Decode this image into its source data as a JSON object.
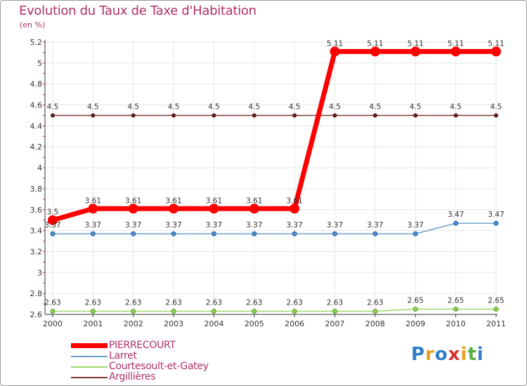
{
  "chart_data": {
    "type": "line",
    "title": "Evolution du Taux de Taxe d'Habitation",
    "subtitle": "(en %)",
    "xlabel": "",
    "ylabel": "",
    "x": [
      "2000",
      "2001",
      "2002",
      "2003",
      "2004",
      "2005",
      "2006",
      "2007",
      "2008",
      "2009",
      "2010",
      "2011"
    ],
    "ylim": [
      2.6,
      5.2
    ],
    "yticks": [
      "5.2",
      "5",
      "4.8",
      "4.6",
      "4.4",
      "4.2",
      "4",
      "3.8",
      "3.6",
      "3.4",
      "3.2",
      "3",
      "2.8",
      "2.6"
    ],
    "grid": true,
    "legend_position": "bottom-left",
    "series": [
      {
        "name": "PIERRECOURT",
        "color": "#ff0000",
        "values": [
          3.5,
          3.61,
          3.61,
          3.61,
          3.61,
          3.61,
          3.61,
          5.11,
          5.11,
          5.11,
          5.11,
          5.11
        ],
        "labels": [
          "3.5",
          "3.61",
          "3.61",
          "3.61",
          "3.61",
          "3.61",
          "3.61",
          "5.11",
          "5.11",
          "5.11",
          "5.11",
          "5.11"
        ]
      },
      {
        "name": "Larret",
        "color": "#6d9fce",
        "values": [
          3.37,
          3.37,
          3.37,
          3.37,
          3.37,
          3.37,
          3.37,
          3.37,
          3.37,
          3.37,
          3.47,
          3.47
        ],
        "labels": [
          "3.37",
          "3.37",
          "3.37",
          "3.37",
          "3.37",
          "3.37",
          "3.37",
          "3.37",
          "3.37",
          "3.37",
          "3.47",
          "3.47"
        ]
      },
      {
        "name": "Courtesoult-et-Gatey",
        "color": "#9ada6a",
        "values": [
          2.63,
          2.63,
          2.63,
          2.63,
          2.63,
          2.63,
          2.63,
          2.63,
          2.63,
          2.65,
          2.65,
          2.65
        ],
        "labels": [
          "2.63",
          "2.63",
          "2.63",
          "2.63",
          "2.63",
          "2.63",
          "2.63",
          "2.63",
          "2.63",
          "2.65",
          "2.65",
          "2.65"
        ]
      },
      {
        "name": "Argillières",
        "color": "#7a3434",
        "values": [
          4.5,
          4.5,
          4.5,
          4.5,
          4.5,
          4.5,
          4.5,
          4.5,
          4.5,
          4.5,
          4.5,
          4.5
        ],
        "labels": [
          "4.5",
          "4.5",
          "4.5",
          "4.5",
          "4.5",
          "4.5",
          "4.5",
          "4.5",
          "4.5",
          "4.5",
          "4.5",
          "4.5"
        ]
      }
    ]
  },
  "logo": {
    "letters": [
      "P",
      "r",
      "o",
      "x",
      "i",
      "t",
      "i"
    ],
    "colors": [
      "#2f7fc8",
      "#e8a020",
      "#2f7fc8",
      "#d83030",
      "#e8a020",
      "#5ab040",
      "#2f7fc8"
    ]
  }
}
